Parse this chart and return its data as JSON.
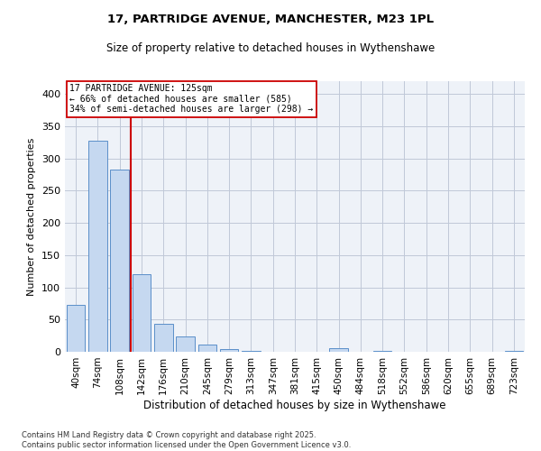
{
  "title_line1": "17, PARTRIDGE AVENUE, MANCHESTER, M23 1PL",
  "title_line2": "Size of property relative to detached houses in Wythenshawe",
  "xlabel": "Distribution of detached houses by size in Wythenshawe",
  "ylabel": "Number of detached properties",
  "footer_line1": "Contains HM Land Registry data © Crown copyright and database right 2025.",
  "footer_line2": "Contains public sector information licensed under the Open Government Licence v3.0.",
  "categories": [
    "40sqm",
    "74sqm",
    "108sqm",
    "142sqm",
    "176sqm",
    "210sqm",
    "245sqm",
    "279sqm",
    "313sqm",
    "347sqm",
    "381sqm",
    "415sqm",
    "450sqm",
    "484sqm",
    "518sqm",
    "552sqm",
    "586sqm",
    "620sqm",
    "655sqm",
    "689sqm",
    "723sqm"
  ],
  "values": [
    73,
    327,
    283,
    120,
    43,
    24,
    11,
    4,
    1,
    0,
    0,
    0,
    5,
    0,
    1,
    0,
    0,
    0,
    0,
    0,
    2
  ],
  "bar_color": "#c5d8f0",
  "bar_edge_color": "#5b8fc9",
  "grid_color": "#c0c8d8",
  "background_color": "#eef2f8",
  "vline_color": "#cc0000",
  "annotation_text": "17 PARTRIDGE AVENUE: 125sqm\n← 66% of detached houses are smaller (585)\n34% of semi-detached houses are larger (298) →",
  "annotation_box_color": "#cc0000",
  "ylim": [
    0,
    420
  ],
  "yticks": [
    0,
    50,
    100,
    150,
    200,
    250,
    300,
    350,
    400
  ],
  "vline_position": 2.5
}
